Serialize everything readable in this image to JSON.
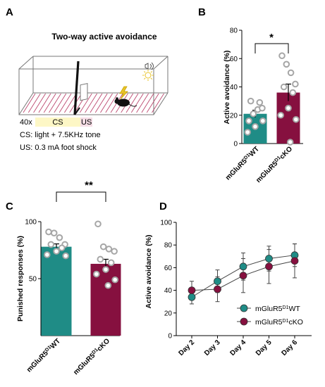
{
  "panels": {
    "A": {
      "letter": "A",
      "title": "Two-way active avoidance",
      "trial_count": "40x",
      "cs_label": "CS",
      "us_label": "US",
      "cs_desc": "CS: light + 7.5KHz tone",
      "us_desc": "US: 0.3 mA foot shock",
      "colors": {
        "cs_fill": "#fdf7c6",
        "us_fill": "#f6dde6",
        "light_icon": "#e8c32a"
      }
    },
    "B": {
      "letter": "B"
    },
    "C": {
      "letter": "C"
    },
    "D": {
      "letter": "D"
    }
  },
  "groups": {
    "wt": {
      "base": "mGluR5",
      "sup": "D1",
      "suffix": "WT"
    },
    "cko": {
      "base": "mGluR5",
      "sup": "D1",
      "suffix": "cKO"
    },
    "legend_wt": {
      "base": "mGluR5",
      "sup": "D1",
      "suffix": "WT"
    },
    "legend_cko": {
      "base": "mGluR5",
      "sup": "D1",
      "suffix": "cKO"
    }
  },
  "colors": {
    "wt": "#1f8c86",
    "cko": "#86103f",
    "dots": "#a6a6a6"
  },
  "chart_data": [
    {
      "panel": "B",
      "type": "bar",
      "ylabel": "Active avoidance (%)",
      "ylim": [
        0,
        80
      ],
      "yticks": [
        0,
        20,
        40,
        60,
        80
      ],
      "significance": "*",
      "series": [
        {
          "group": "wt",
          "mean": 21,
          "sem": 2.5,
          "points": [
            16,
            21,
            24,
            25,
            30,
            29,
            12,
            8,
            16
          ]
        },
        {
          "group": "cko",
          "mean": 36,
          "sem": 6,
          "points": [
            62,
            56,
            50,
            42,
            40,
            36,
            25,
            20,
            17,
            1
          ]
        }
      ]
    },
    {
      "panel": "C",
      "type": "bar",
      "ylabel": "Punished responses (%)",
      "ylim": [
        0,
        100
      ],
      "yticks": [
        50,
        100
      ],
      "significance": "**",
      "series": [
        {
          "group": "wt",
          "mean": 78,
          "sem": 2.5,
          "points": [
            91,
            90,
            86,
            80,
            80,
            77,
            74,
            71,
            70
          ]
        },
        {
          "group": "cko",
          "mean": 63,
          "sem": 4,
          "points": [
            98,
            78,
            76,
            74,
            67,
            64,
            58,
            54,
            49,
            44
          ]
        }
      ]
    },
    {
      "panel": "D",
      "type": "line",
      "ylabel": "Active avoidance (%)",
      "ylim": [
        0,
        100
      ],
      "yticks": [
        0,
        20,
        40,
        60,
        80,
        100
      ],
      "categories": [
        "Day 2",
        "Day 3",
        "Day 4",
        "Day 5",
        "Day 6"
      ],
      "series": [
        {
          "group": "legend_wt",
          "values": [
            34,
            48,
            61,
            68,
            71
          ],
          "err": [
            6,
            10,
            12,
            11,
            10
          ]
        },
        {
          "group": "legend_cko",
          "values": [
            40,
            41,
            53,
            61,
            66
          ],
          "err": [
            8,
            11,
            15,
            15,
            15
          ]
        }
      ]
    }
  ]
}
